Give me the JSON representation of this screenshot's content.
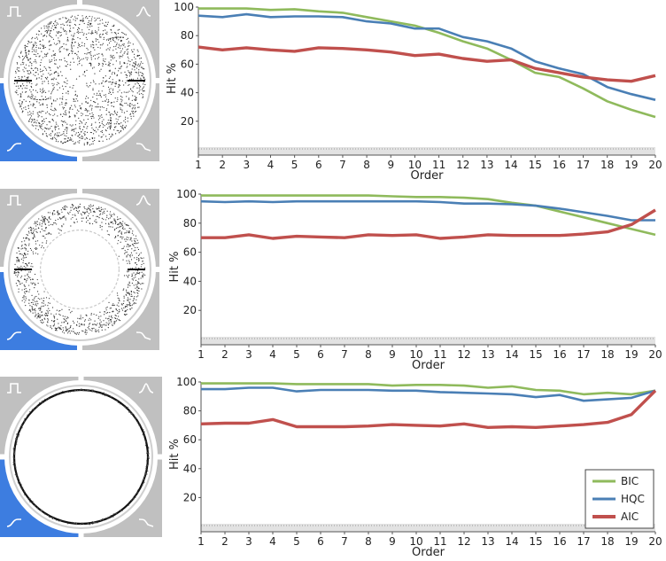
{
  "colors": {
    "BIC": "#8fba5c",
    "HQC": "#4a7fb5",
    "AIC": "#c0504d",
    "panel_gray": "#c0c0c0",
    "panel_blue": "#3d7de0",
    "frame_white": "#ffffff"
  },
  "thumbnails": [
    {
      "selected_quadrant": "bottom-left",
      "scatter": "full-disk",
      "icons": [
        "square-pulse-icon",
        "gaussian-peak-icon",
        "rising-step-icon",
        "falling-step-icon"
      ]
    },
    {
      "selected_quadrant": "bottom-left",
      "scatter": "ring",
      "icons": [
        "square-pulse-icon",
        "gaussian-peak-icon",
        "rising-step-icon",
        "falling-step-icon"
      ]
    },
    {
      "selected_quadrant": "bottom-left",
      "scatter": "circle-line",
      "icons": [
        "square-pulse-icon",
        "gaussian-peak-icon",
        "rising-step-icon",
        "falling-step-icon"
      ]
    }
  ],
  "legend": {
    "placement": "bottom-right",
    "entries": [
      "BIC",
      "HQC",
      "AIC"
    ]
  },
  "chart_data": [
    {
      "type": "line",
      "xlabel": "Order",
      "ylabel": "Hit %",
      "xlim": [
        1,
        20
      ],
      "ylim": [
        0,
        100
      ],
      "x": [
        1,
        2,
        3,
        4,
        5,
        6,
        7,
        8,
        9,
        10,
        11,
        12,
        13,
        14,
        15,
        16,
        17,
        18,
        19,
        20
      ],
      "yticks": [
        20,
        40,
        60,
        80,
        100
      ],
      "grid": false,
      "series": [
        {
          "name": "BIC",
          "values": [
            99,
            99,
            99,
            98,
            98.5,
            97,
            96,
            93,
            90,
            87,
            82,
            76,
            71,
            63,
            54,
            51,
            43,
            34,
            28,
            23
          ]
        },
        {
          "name": "HQC",
          "values": [
            94,
            93,
            95,
            93,
            93.5,
            93.5,
            93,
            90,
            88.5,
            85,
            85,
            79,
            76,
            71,
            62,
            57,
            53,
            44,
            39,
            35
          ]
        },
        {
          "name": "AIC",
          "values": [
            72,
            70,
            71.5,
            70,
            69,
            71.5,
            71,
            70,
            68.5,
            66,
            67,
            64,
            62,
            63,
            57,
            54,
            51,
            49,
            48,
            52
          ]
        }
      ]
    },
    {
      "type": "line",
      "xlabel": "Order",
      "ylabel": "Hit %",
      "xlim": [
        1,
        20
      ],
      "ylim": [
        0,
        100
      ],
      "x": [
        1,
        2,
        3,
        4,
        5,
        6,
        7,
        8,
        9,
        10,
        11,
        12,
        13,
        14,
        15,
        16,
        17,
        18,
        19,
        20
      ],
      "yticks": [
        20,
        40,
        60,
        80,
        100
      ],
      "grid": false,
      "series": [
        {
          "name": "BIC",
          "values": [
            99,
            99,
            99,
            99,
            99,
            99,
            99,
            99,
            98.5,
            98,
            98,
            97.5,
            96.5,
            94,
            92,
            88,
            84,
            80,
            76,
            72
          ]
        },
        {
          "name": "HQC",
          "values": [
            95,
            94.5,
            95,
            94.5,
            95,
            95,
            95,
            95,
            95,
            95,
            94.5,
            93.5,
            93.5,
            93,
            92,
            90,
            87.5,
            85,
            82,
            82
          ]
        },
        {
          "name": "AIC",
          "values": [
            70,
            70,
            72,
            69.5,
            71,
            70.5,
            70,
            72,
            71.5,
            72,
            69.5,
            70.5,
            72,
            71.5,
            71.5,
            71.5,
            72.5,
            74,
            79,
            89
          ]
        }
      ]
    },
    {
      "type": "line",
      "xlabel": "Order",
      "ylabel": "Hit %",
      "xlim": [
        1,
        20
      ],
      "ylim": [
        0,
        100
      ],
      "x": [
        1,
        2,
        3,
        4,
        5,
        6,
        7,
        8,
        9,
        10,
        11,
        12,
        13,
        14,
        15,
        16,
        17,
        18,
        19,
        20
      ],
      "yticks": [
        20,
        40,
        60,
        80,
        100
      ],
      "grid": false,
      "series": [
        {
          "name": "BIC",
          "values": [
            99,
            99,
            99,
            99,
            98.5,
            98.5,
            98.5,
            98.5,
            97.5,
            98,
            98,
            97.5,
            96,
            97,
            94.5,
            94,
            91.5,
            92.5,
            91.5,
            94
          ]
        },
        {
          "name": "HQC",
          "values": [
            95,
            95,
            96,
            96,
            93.5,
            94.5,
            94.5,
            94.5,
            94,
            94,
            93,
            92.5,
            92,
            91.5,
            89.5,
            91,
            87,
            88,
            89,
            94
          ]
        },
        {
          "name": "AIC",
          "values": [
            71,
            71.5,
            71.5,
            74,
            69,
            69,
            69,
            69.5,
            70.5,
            70,
            69.5,
            71,
            68.5,
            69,
            68.5,
            69.5,
            70.5,
            72,
            77.5,
            94
          ]
        }
      ]
    }
  ]
}
